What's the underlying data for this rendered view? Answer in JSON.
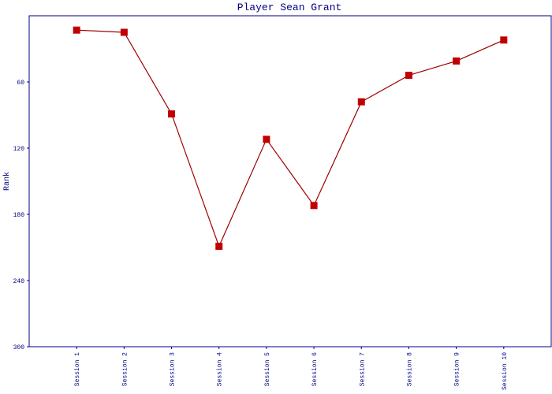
{
  "chart_data": {
    "type": "line",
    "title": "Player Sean Grant",
    "y_label": "Rank",
    "categories": [
      "Session 1",
      "Session 2",
      "Session 3",
      "Session 4",
      "Session 5",
      "Session 6",
      "Session 7",
      "Session 8",
      "Session 9",
      "Session 10"
    ],
    "series": [
      {
        "name": "Sean Grant",
        "color": "#c00000",
        "values": [
          13,
          15,
          89,
          209,
          112,
          172,
          78,
          54,
          41,
          22
        ]
      }
    ],
    "ylim": [
      0,
      300
    ],
    "yticks": [
      60,
      120,
      180,
      240,
      300
    ],
    "y_inverted": true,
    "grid": false
  }
}
